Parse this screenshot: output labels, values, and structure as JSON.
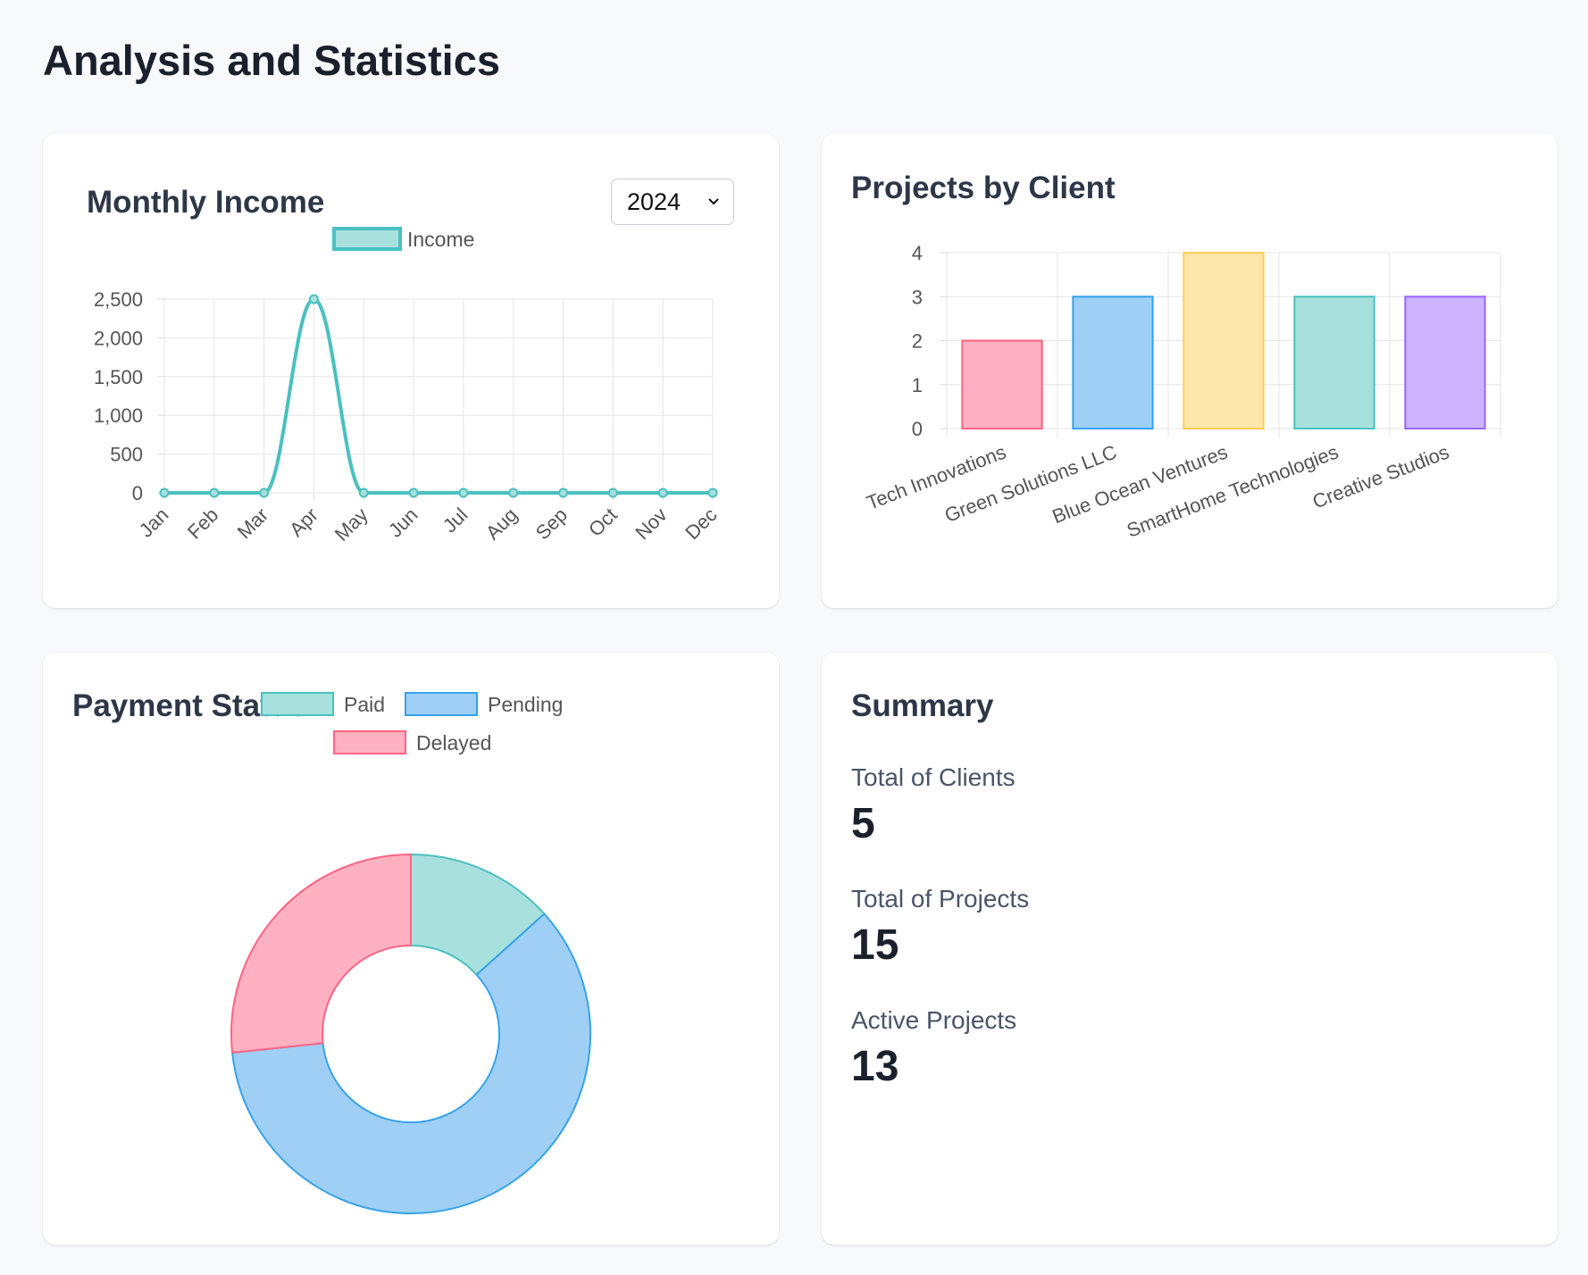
{
  "page": {
    "title": "Analysis and Statistics"
  },
  "income_card": {
    "title": "Monthly Income",
    "year_select": {
      "value": "2024",
      "icon": "chevron-down-icon"
    }
  },
  "projects_card": {
    "title": "Projects by Client"
  },
  "payment_card": {
    "title": "Payment Status"
  },
  "summary": {
    "title": "Summary",
    "items": [
      {
        "label": "Total of Clients",
        "value": "5"
      },
      {
        "label": "Total of Projects",
        "value": "15"
      },
      {
        "label": "Active Projects",
        "value": "13"
      }
    ]
  },
  "colors": {
    "teal": "#4bc0c0",
    "teal_fill": "#a8e0de",
    "blue": "#36a2eb",
    "blue_fill": "#9fcff5",
    "pink": "#ff6384",
    "pink_fill": "#ffb1c1",
    "yellow": "#ffcd56",
    "yellow_fill": "#ffe6aa",
    "purple": "#9966ff",
    "purple_fill": "#ccb2ff"
  },
  "chart_data": [
    {
      "id": "monthly-income",
      "type": "line",
      "categories": [
        "Jan",
        "Feb",
        "Mar",
        "Apr",
        "May",
        "Jun",
        "Jul",
        "Aug",
        "Sep",
        "Oct",
        "Nov",
        "Dec"
      ],
      "series": [
        {
          "name": "Income",
          "values": [
            0,
            0,
            0,
            2500,
            0,
            0,
            0,
            0,
            0,
            0,
            0,
            0
          ]
        }
      ],
      "ylim": [
        0,
        2500
      ],
      "yticks": [
        "0",
        "500",
        "1,000",
        "1,500",
        "2,000",
        "2,500"
      ],
      "legend": "top"
    },
    {
      "id": "projects-by-client",
      "type": "bar",
      "categories": [
        "Tech Innovations",
        "Green Solutions LLC",
        "Blue Ocean Ventures",
        "SmartHome Technologies",
        "Creative Studios"
      ],
      "values": [
        2,
        3,
        4,
        3,
        3
      ],
      "ylim": [
        0,
        4
      ],
      "yticks": [
        "0",
        "1",
        "2",
        "3",
        "4"
      ]
    },
    {
      "id": "payment-status",
      "type": "pie",
      "categories": [
        "Paid",
        "Pending",
        "Delayed"
      ],
      "values": [
        2,
        9,
        4
      ],
      "legend": "top"
    }
  ]
}
